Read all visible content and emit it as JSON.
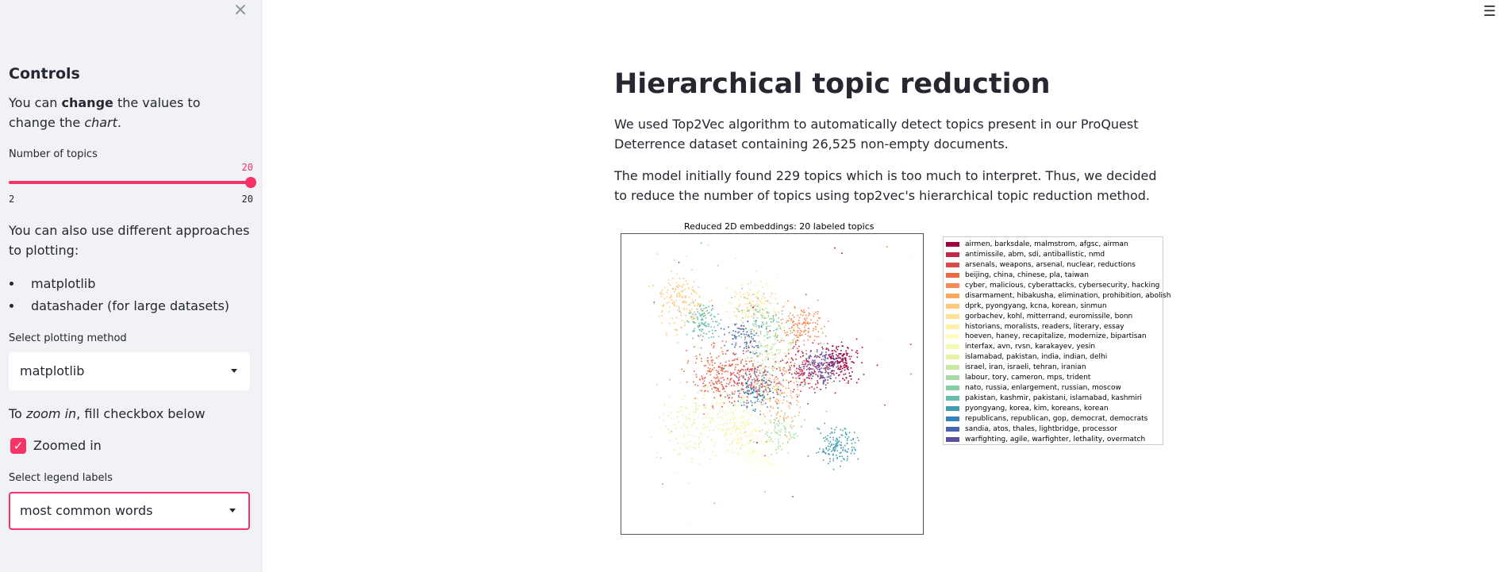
{
  "sidebar": {
    "close_icon": "close-icon",
    "title": "Controls",
    "intro": {
      "pre": "You can ",
      "bold": "change",
      "mid": " the values to change the ",
      "italic": "chart",
      "post": "."
    },
    "slider": {
      "label": "Number of topics",
      "value": "20",
      "min": "2",
      "max": "20",
      "fraction": 1.0
    },
    "approaches_text": "You can also use different approaches to plotting:",
    "approaches": [
      "matplotlib",
      "datashader (for large datasets)"
    ],
    "plot_method": {
      "label": "Select plotting method",
      "value": "matplotlib"
    },
    "zoom": {
      "pre": "To ",
      "italic": "zoom in",
      "post": ", fill checkbox below",
      "checkbox_label": "Zoomed in",
      "checked": true
    },
    "legend_labels": {
      "label": "Select legend labels",
      "value": "most common words"
    }
  },
  "menu_icon": "hamburger-icon",
  "main": {
    "title": "Hierarchical topic reduction",
    "para1": "We used Top2Vec algorithm to automatically detect topics present in our ProQuest Deterrence dataset containing 26,525 non-empty documents.",
    "para2": "The model initially found 229 topics which is too much to interpret. Thus, we decided to reduce the number of topics using top2vec's hierarchical topic reduction method."
  },
  "colors": {
    "accent": "#f63366",
    "sidebar_bg": "#f0f2f6"
  },
  "chart_data": {
    "type": "scatter",
    "title": "Reduced 2D embeddings: 20 labeled topics",
    "legend_position": "right-outside",
    "grid": false,
    "series": [
      {
        "name": "airmen, barksdale, malmstrom, afgsc, airman",
        "color": "#9e0142"
      },
      {
        "name": "antimissile, abm, sdi, antiballistic, nmd",
        "color": "#c2294a"
      },
      {
        "name": "arsenals, weapons, arsenal, nuclear, reductions",
        "color": "#dc494c"
      },
      {
        "name": "beijing, china, chinese, pla, taiwan",
        "color": "#ef6645"
      },
      {
        "name": "cyber, malicious, cyberattacks, cybersecurity, hacking",
        "color": "#f88950"
      },
      {
        "name": "disarmament, hibakusha, elimination, prohibition, abolish",
        "color": "#fcaa5f"
      },
      {
        "name": "dprk, pyongyang, kcna, korean, sinmun",
        "color": "#fdc877"
      },
      {
        "name": "gorbachev, kohl, mitterrand, euromissile, bonn",
        "color": "#fee192"
      },
      {
        "name": "historians, moralists, readers, literary, essay",
        "color": "#fff1a8"
      },
      {
        "name": "hoeven, haney, recapitalize, modernize, bipartisan",
        "color": "#fffebe"
      },
      {
        "name": "interfax, avn, rvsn, karakayev, yesin",
        "color": "#f4fab0"
      },
      {
        "name": "islamabad, pakistan, india, indian, delhi",
        "color": "#e4f4a0"
      },
      {
        "name": "israel, iran, israeli, tehran, iranian",
        "color": "#c7e89e"
      },
      {
        "name": "labour, tory, cameron, mps, trident",
        "color": "#a5dba4"
      },
      {
        "name": "nato, russia, enlargement, russian, moscow",
        "color": "#84cda5"
      },
      {
        "name": "pakistan, kashmir, pakistani, islamabad, kashmiri",
        "color": "#63bda9"
      },
      {
        "name": "pyongyang, korea, kim, koreans, korean",
        "color": "#449daf"
      },
      {
        "name": "republicans, republican, gop, democrat, democrats",
        "color": "#3681b9"
      },
      {
        "name": "sandia, atos, thales, lightbridge, processor",
        "color": "#4b65ac"
      },
      {
        "name": "warfighting, agile, warfighter, lethality, overmatch",
        "color": "#5e4fa2"
      }
    ]
  }
}
